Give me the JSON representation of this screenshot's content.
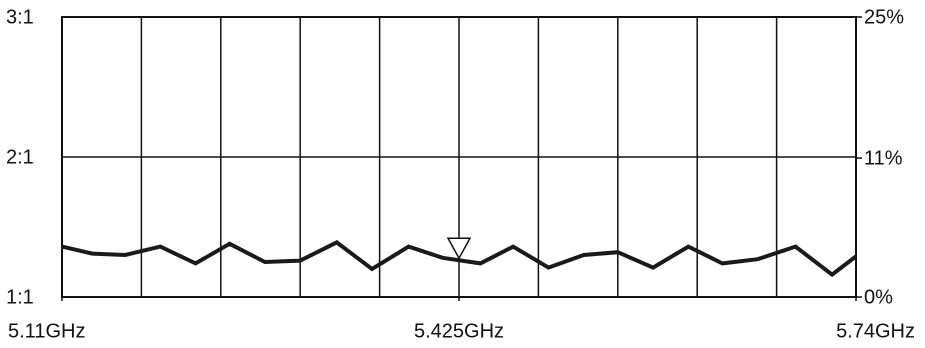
{
  "chart_data": {
    "type": "line",
    "x": [
      5.11,
      5.134,
      5.16,
      5.188,
      5.216,
      5.243,
      5.271,
      5.299,
      5.328,
      5.356,
      5.385,
      5.412,
      5.442,
      5.468,
      5.496,
      5.524,
      5.551,
      5.579,
      5.607,
      5.634,
      5.662,
      5.692,
      5.721,
      5.74
    ],
    "series": [
      {
        "color": "#1a1a1a",
        "values": [
          1.36,
          1.31,
          1.3,
          1.36,
          1.24,
          1.38,
          1.25,
          1.26,
          1.39,
          1.2,
          1.36,
          1.28,
          1.24,
          1.36,
          1.21,
          1.3,
          1.32,
          1.21,
          1.36,
          1.24,
          1.27,
          1.36,
          1.16,
          1.29
        ]
      }
    ],
    "xlim": [
      5.11,
      5.74
    ],
    "xticks": [
      {
        "value": 5.11,
        "label": "5.11GHz"
      },
      {
        "value": 5.425,
        "label": "5.425GHz"
      },
      {
        "value": 5.74,
        "label": "5.74GHz"
      }
    ],
    "x_grid_divisions": 10,
    "ylim": [
      1,
      3
    ],
    "yticks": [
      {
        "value": 1,
        "label": "1:1"
      },
      {
        "value": 2,
        "label": "2:1"
      },
      {
        "value": 3,
        "label": "3:1"
      }
    ],
    "y2scale": "reflected-power",
    "y2ticks": [
      {
        "value": 0,
        "label": "0%"
      },
      {
        "value": 11,
        "label": "11%"
      },
      {
        "value": 25,
        "label": "25%"
      }
    ],
    "grid": true,
    "marker_x": 5.425
  }
}
